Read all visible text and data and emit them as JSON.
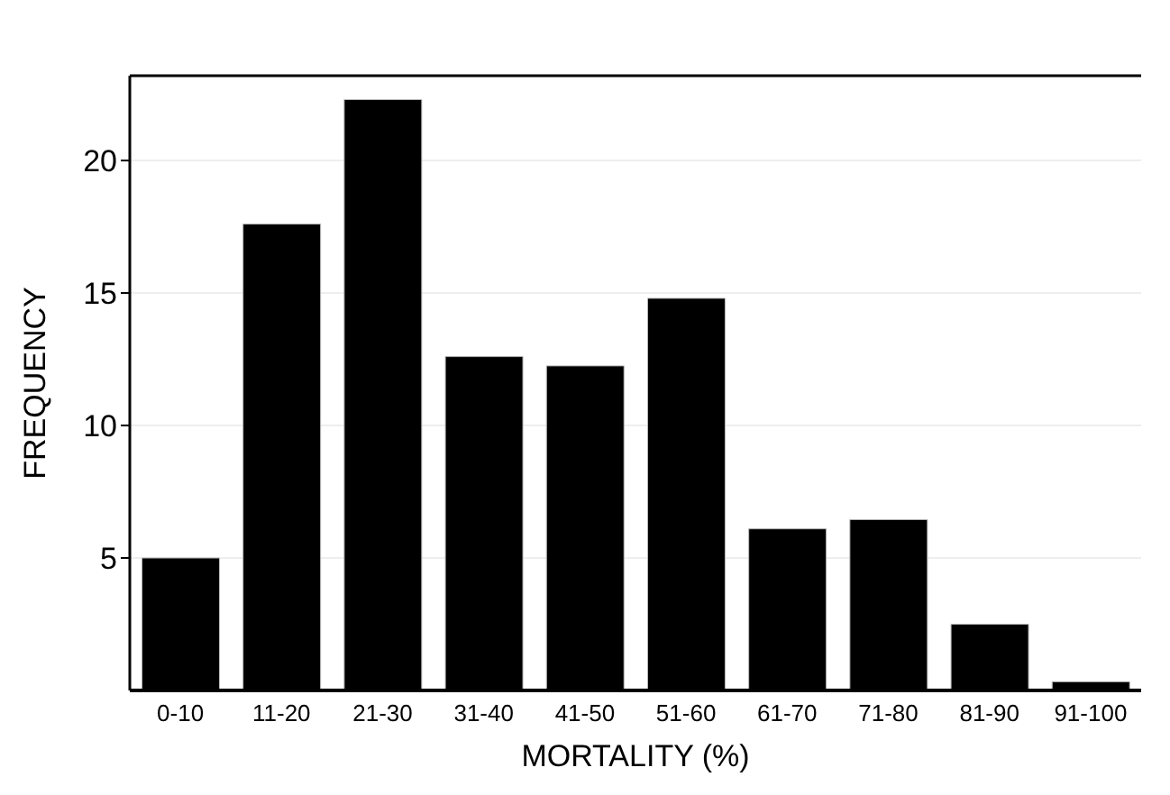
{
  "chart_data": {
    "type": "bar",
    "xlabel": "MORTALITY (%)",
    "ylabel": "FREQUENCY",
    "categories": [
      "0-10",
      "11-20",
      "21-30",
      "31-40",
      "41-50",
      "51-60",
      "61-70",
      "71-80",
      "81-90",
      "91-100"
    ],
    "values": [
      5.0,
      17.6,
      22.3,
      12.6,
      12.25,
      14.8,
      6.1,
      6.45,
      2.5,
      0.33
    ],
    "color": "#000000",
    "ylim": [
      0,
      23.2
    ],
    "yticks": [
      5,
      10,
      15,
      20
    ],
    "grid": "y"
  }
}
